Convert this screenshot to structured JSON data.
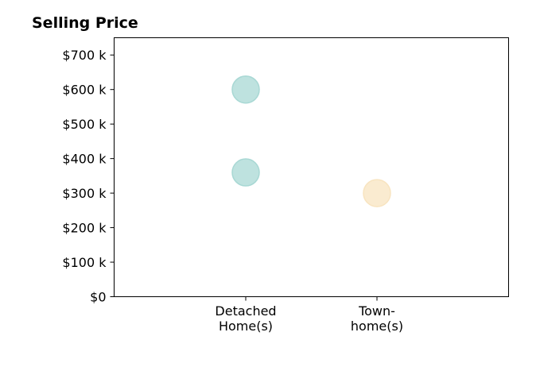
{
  "chart_data": {
    "type": "scatter",
    "title": "Selling Price",
    "xlabel": "",
    "ylabel": "",
    "categories": [
      [
        "Detached",
        "Home(s)"
      ],
      [
        "Town-",
        "home(s)"
      ]
    ],
    "y_ticks": [
      "$0",
      "$100 k",
      "$200 k",
      "$300 k",
      "$400 k",
      "$500 k",
      "$600 k",
      "$700 k"
    ],
    "ylim": [
      0,
      750000
    ],
    "y_tick_values": [
      0,
      100000,
      200000,
      300000,
      400000,
      500000,
      600000,
      700000
    ],
    "points": [
      {
        "category": 0,
        "y": 600000,
        "color": "#a8d8d4"
      },
      {
        "category": 0,
        "y": 360000,
        "color": "#a8d8d4"
      },
      {
        "category": 1,
        "y": 300000,
        "color": "#f8e4c0"
      }
    ],
    "grid": false,
    "legend": "none"
  }
}
